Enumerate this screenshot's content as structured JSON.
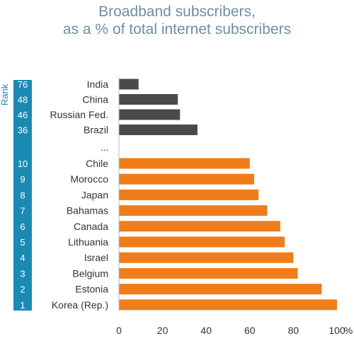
{
  "title_line1": "Broadband subscribers,",
  "title_line2": "as a % of total internet subscribers",
  "rank_header": "Rank",
  "ellipsis": "...",
  "colors": {
    "top": "#4a4a4a",
    "bottom": "#f07d19",
    "rank_bar": "#1a8ab3",
    "title": "#6f8fa0"
  },
  "chart_data": {
    "type": "bar",
    "orientation": "horizontal",
    "xlim": [
      0,
      100
    ],
    "xlabel": "%",
    "xticks": [
      0,
      20,
      40,
      60,
      80,
      100
    ],
    "top_group": [
      {
        "category": "India",
        "rank": "76",
        "value": 9
      },
      {
        "category": "China",
        "rank": "48",
        "value": 27
      },
      {
        "category": "Russian Fed.",
        "rank": "46",
        "value": 28
      },
      {
        "category": "Brazil",
        "rank": "36",
        "value": 36
      }
    ],
    "bottom_group": [
      {
        "category": "Chile",
        "rank": "10",
        "value": 60
      },
      {
        "category": "Morocco",
        "rank": "9",
        "value": 62
      },
      {
        "category": "Japan",
        "rank": "8",
        "value": 64
      },
      {
        "category": "Bahamas",
        "rank": "7",
        "value": 68
      },
      {
        "category": "Canada",
        "rank": "6",
        "value": 74
      },
      {
        "category": "Lithuania",
        "rank": "5",
        "value": 76
      },
      {
        "category": "Israel",
        "rank": "4",
        "value": 80
      },
      {
        "category": "Belgium",
        "rank": "3",
        "value": 82
      },
      {
        "category": "Estonia",
        "rank": "2",
        "value": 93
      },
      {
        "category": "Korea (Rep.)",
        "rank": "1",
        "value": 100
      }
    ]
  }
}
